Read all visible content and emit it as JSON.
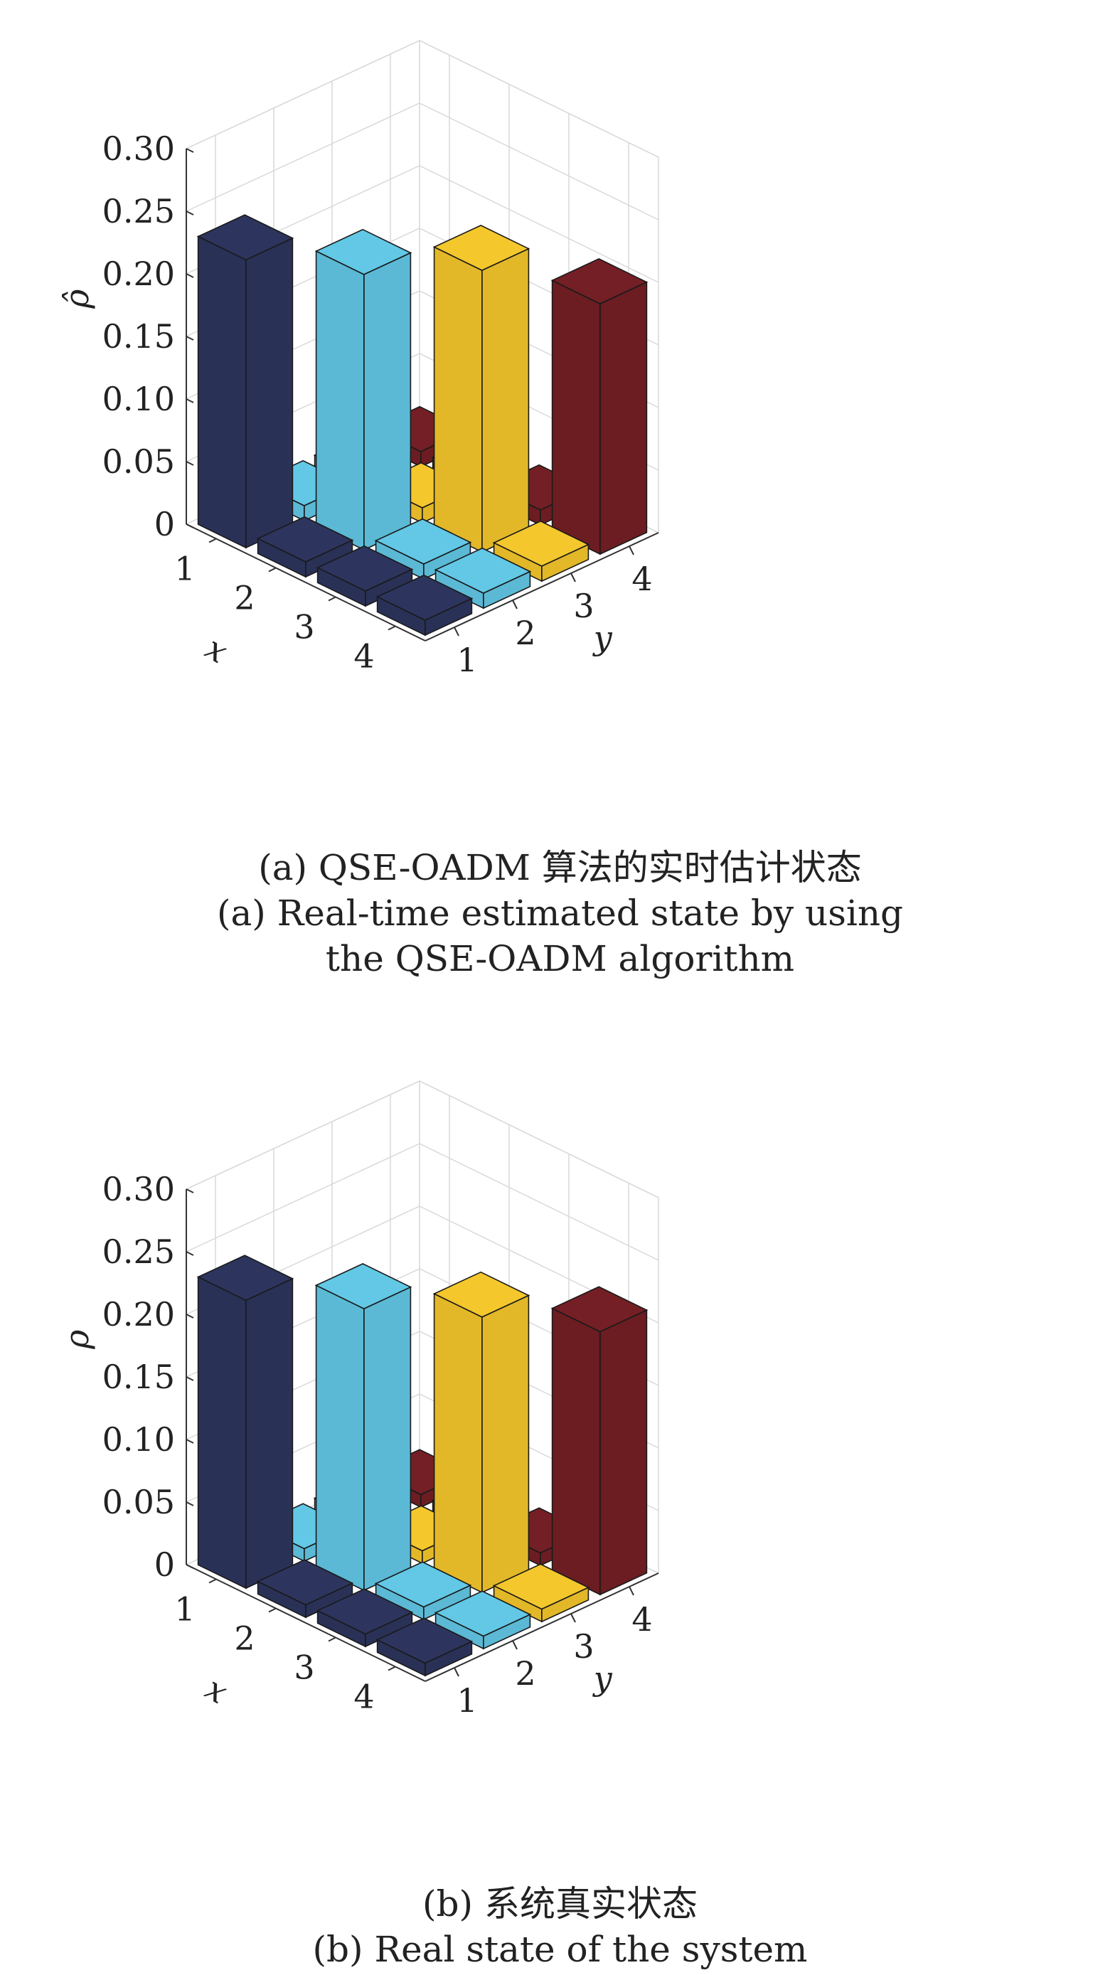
{
  "panels": [
    {
      "caption_cn": "(a) QSE-OADM 算法的实时估计状态",
      "caption_en_lines": [
        "(a) Real-time estimated state by using",
        "the QSE-OADM algorithm"
      ]
    },
    {
      "caption_cn": "(b) 系统真实状态",
      "caption_en_lines": [
        "(b) Real state of the system"
      ]
    }
  ],
  "colors": {
    "column_1": "#2a3157",
    "column_2": "#5bb9d5",
    "column_3": "#e2b829",
    "column_4": "#6b1d22",
    "grid": "#d9d9d9",
    "axis": "#333333"
  },
  "chart_data": [
    {
      "type": "bar3d",
      "zlabel": "ρ̂",
      "xlabel": "x",
      "ylabel": "y",
      "x_ticks": [
        "1",
        "2",
        "3",
        "4"
      ],
      "y_ticks": [
        "1",
        "2",
        "3",
        "4"
      ],
      "z_ticks": [
        "0",
        "0.05",
        "0.10",
        "0.15",
        "0.20",
        "0.25",
        "0.30"
      ],
      "zlim": [
        0,
        0.3
      ],
      "grid": true,
      "values": [
        [
          0.23,
          0.012,
          0.012,
          0.012
        ],
        [
          0.012,
          0.22,
          0.012,
          0.012
        ],
        [
          0.012,
          0.012,
          0.225,
          0.012
        ],
        [
          0.012,
          0.012,
          0.012,
          0.2
        ]
      ]
    },
    {
      "type": "bar3d",
      "zlabel": "ρ",
      "xlabel": "x",
      "ylabel": "y",
      "x_ticks": [
        "1",
        "2",
        "3",
        "4"
      ],
      "y_ticks": [
        "1",
        "2",
        "3",
        "4"
      ],
      "z_ticks": [
        "0",
        "0.05",
        "0.10",
        "0.15",
        "0.20",
        "0.25",
        "0.30"
      ],
      "zlim": [
        0,
        0.3
      ],
      "grid": true,
      "values": [
        [
          0.23,
          0.01,
          0.01,
          0.01
        ],
        [
          0.01,
          0.225,
          0.01,
          0.01
        ],
        [
          0.01,
          0.01,
          0.22,
          0.01
        ],
        [
          0.01,
          0.01,
          0.01,
          0.21
        ]
      ]
    }
  ]
}
